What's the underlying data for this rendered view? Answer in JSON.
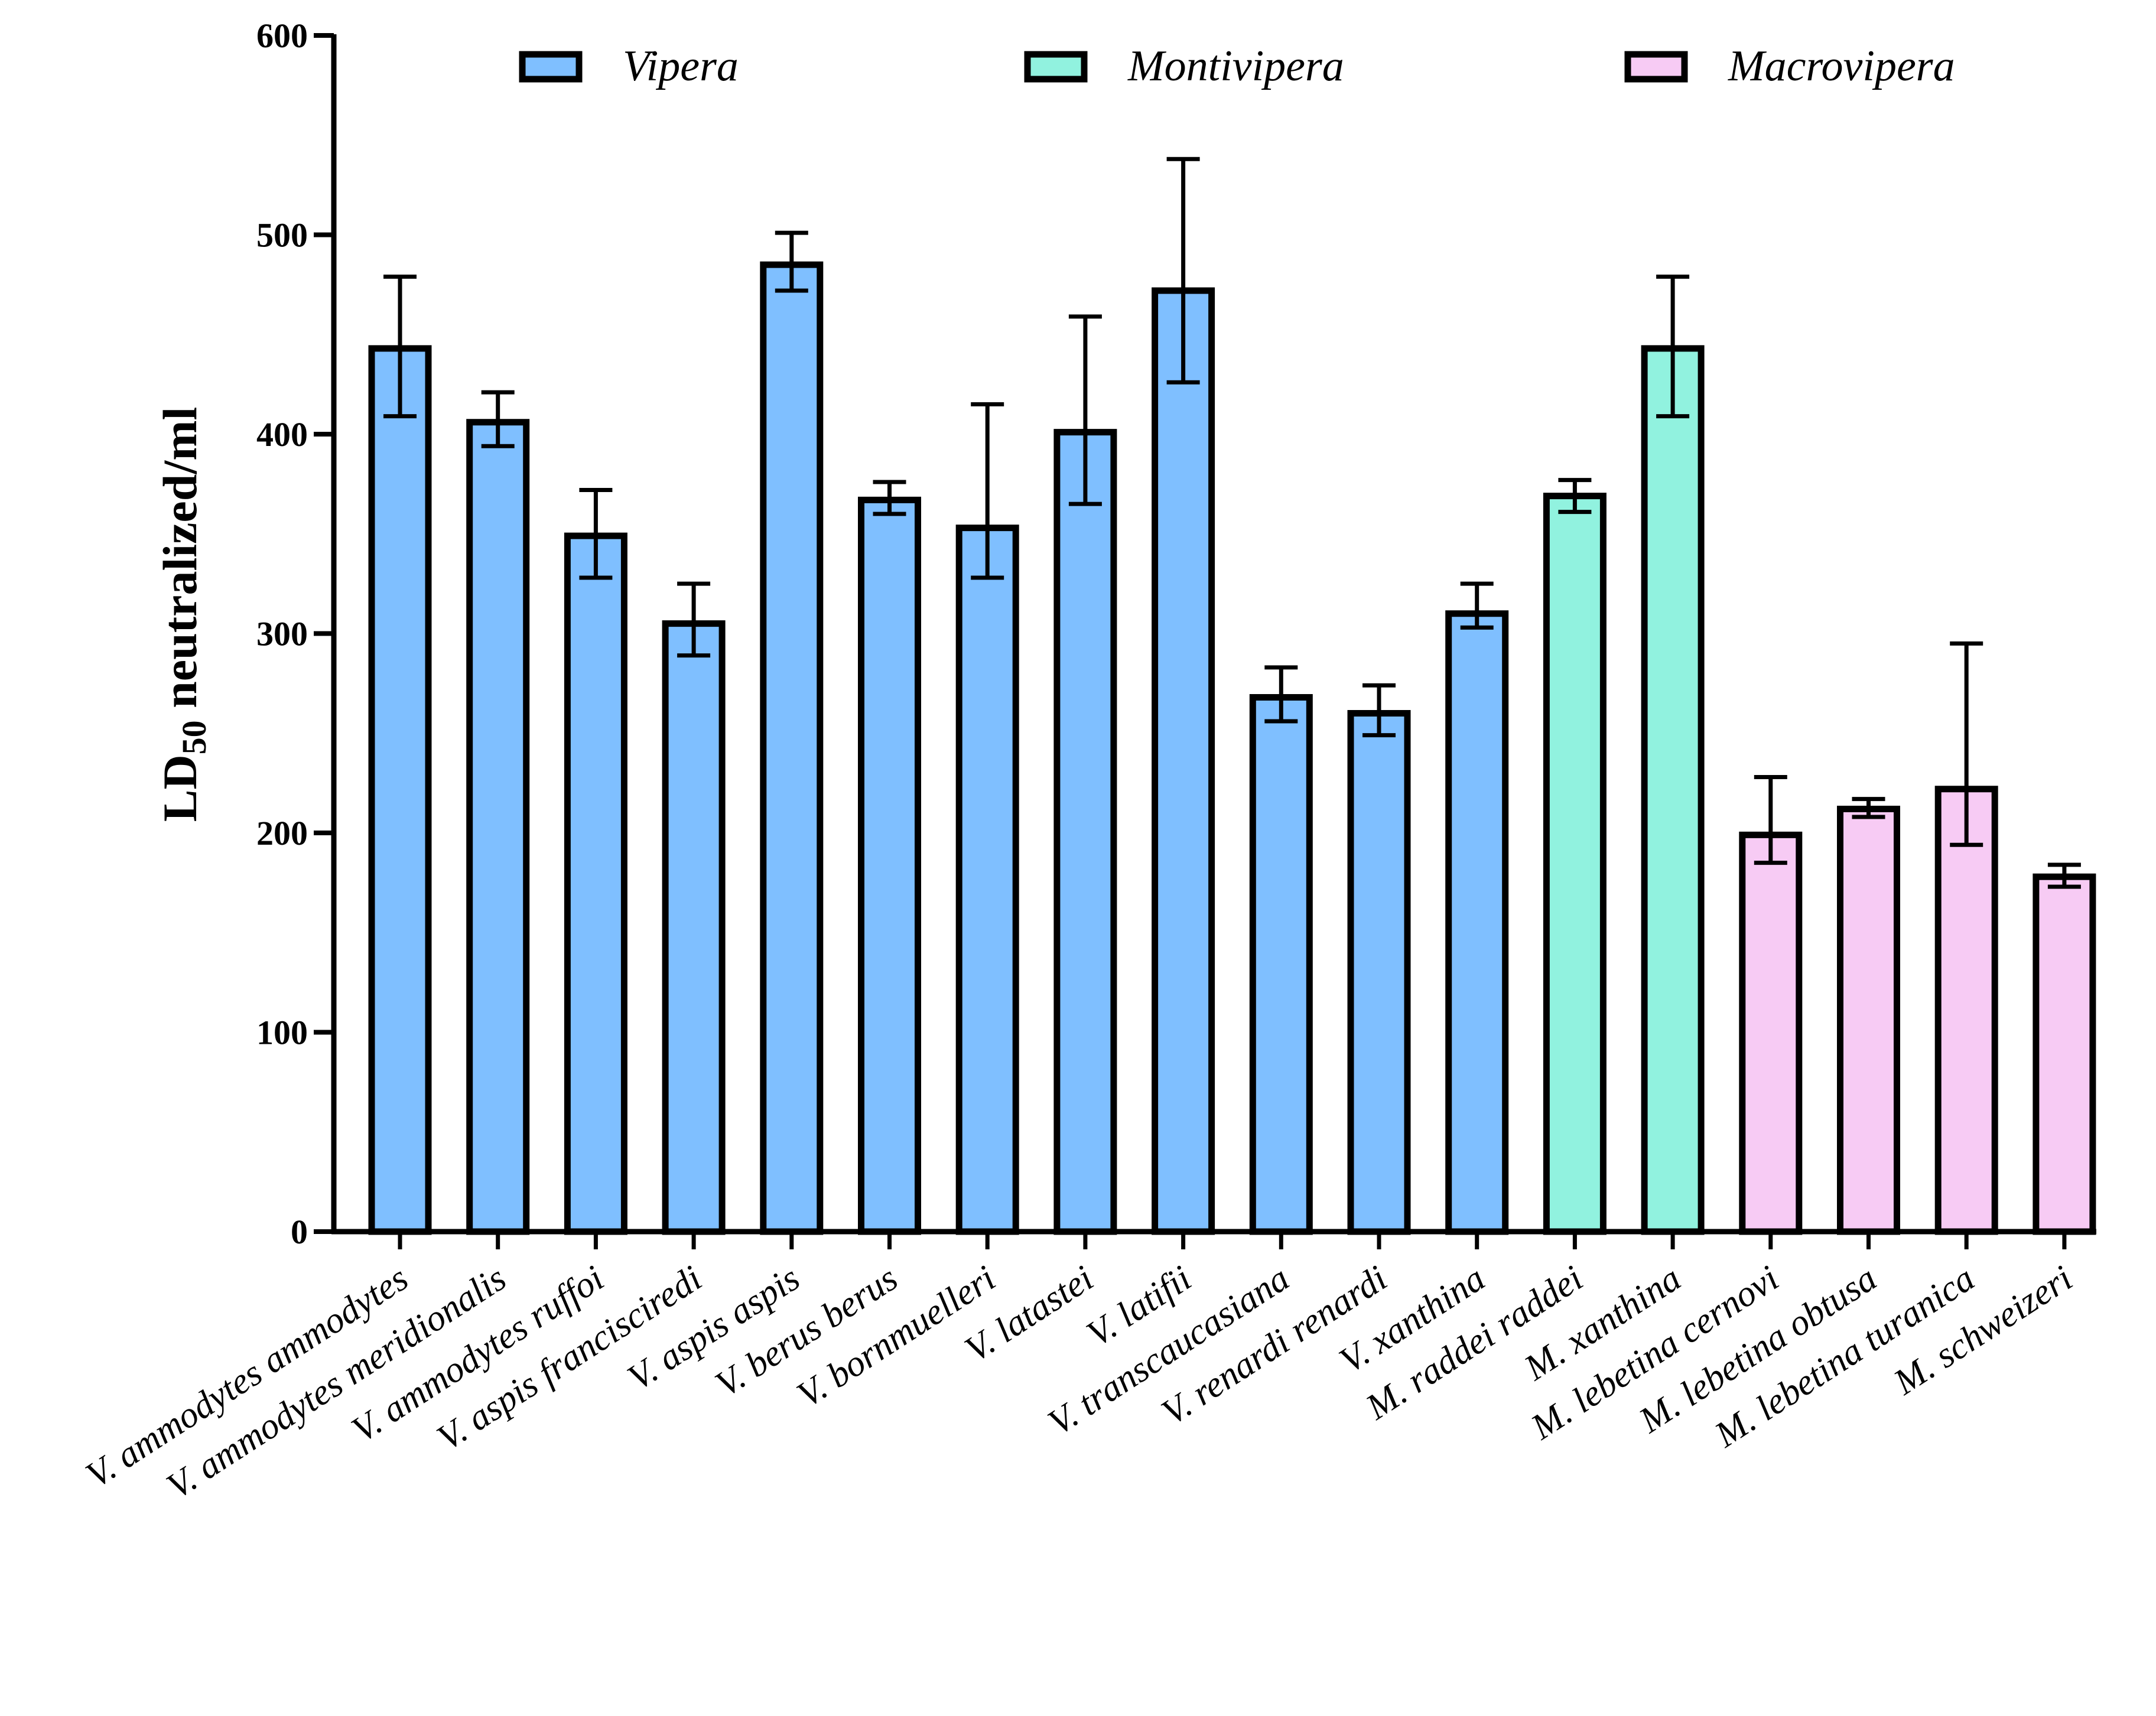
{
  "chart_data": {
    "type": "bar",
    "title": "",
    "xlabel": "",
    "ylabel": {
      "prefix": "LD",
      "subscript": "50",
      "suffix": " neutralized/ml"
    },
    "ylim": [
      0,
      600
    ],
    "yticks": [
      0,
      100,
      200,
      300,
      400,
      500,
      600
    ],
    "grid": false,
    "legend_position": "top",
    "groups": [
      {
        "name": "Vipera",
        "color": "#7fbfff"
      },
      {
        "name": "Montivipera",
        "color": "#91f2df"
      },
      {
        "name": "Macrovipera",
        "color": "#f7cbf4"
      }
    ],
    "categories": [
      "V. ammodytes ammodytes",
      "V. ammodytes meridionalis",
      "V. ammodytes ruffoi",
      "V. aspis francisciredi",
      "V. aspis aspis",
      "V. berus berus",
      "V. bornmuelleri",
      "V. latastei",
      "V. latifii",
      "V. transcaucasiana",
      "V. renardi renardi",
      "V. xanthina",
      "M. raddei raddei",
      "M. xanthina",
      "M. lebetina cernovi",
      "M. lebetina obtusa",
      "M. lebetina turanica",
      "M. schweizeri"
    ],
    "values": [
      443,
      406,
      349,
      305,
      485,
      367,
      353,
      401,
      472,
      268,
      260,
      310,
      369,
      443,
      199,
      212,
      222,
      178
    ],
    "error_low": [
      409,
      394,
      328,
      289,
      472,
      360,
      328,
      365,
      426,
      256,
      249,
      303,
      361,
      409,
      185,
      208,
      194,
      173
    ],
    "error_high": [
      479,
      421,
      372,
      325,
      501,
      376,
      415,
      459,
      538,
      283,
      274,
      325,
      377,
      479,
      228,
      217,
      295,
      184
    ],
    "group_index": [
      0,
      0,
      0,
      0,
      0,
      0,
      0,
      0,
      0,
      0,
      0,
      0,
      1,
      1,
      2,
      2,
      2,
      2
    ]
  }
}
